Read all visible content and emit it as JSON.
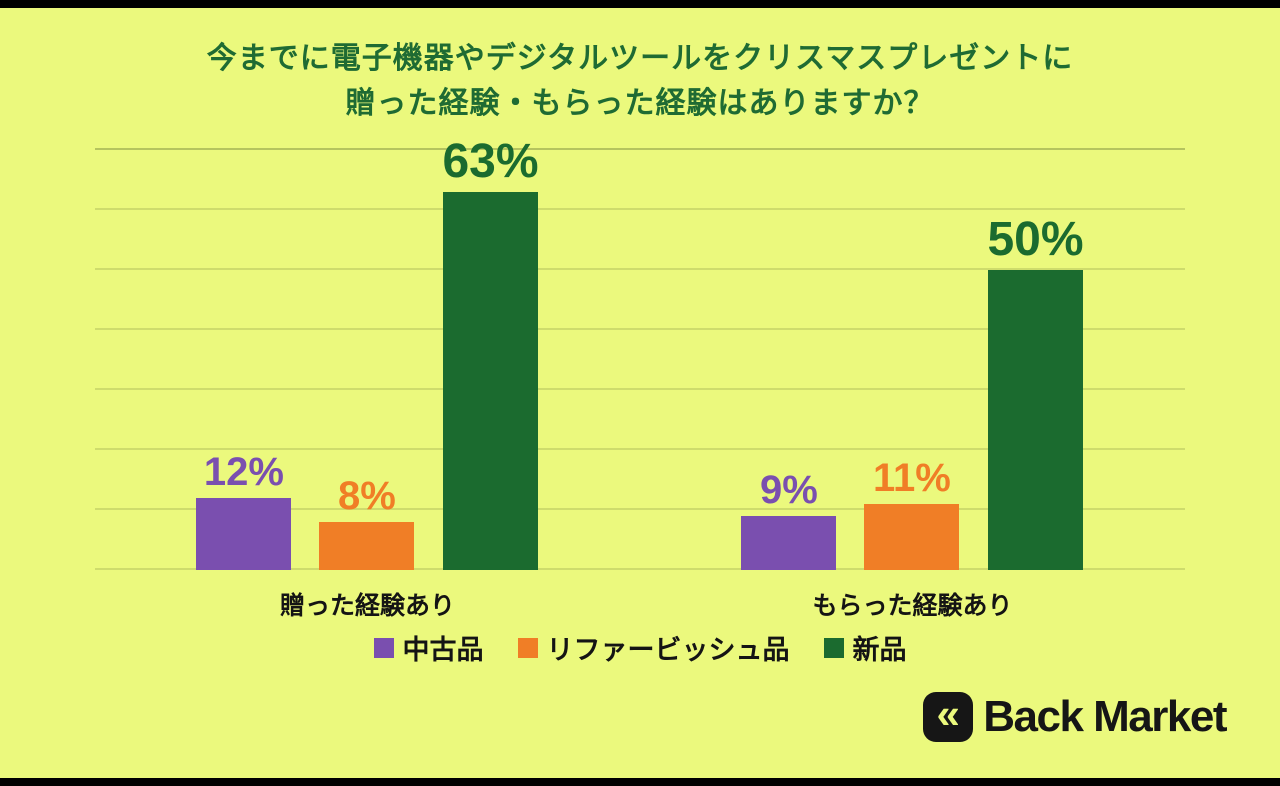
{
  "background_color": "#EBF97D",
  "text_color": "#141414",
  "title_color": "#1F6B33",
  "chart_data": {
    "type": "bar",
    "title": "今までに電子機器やデジタルツールをクリスマスプレゼントに贈った経験・もらった経験はありますか？",
    "title_lines": [
      "今までに電子機器やデジタルツールをクリスマスプレゼントに",
      "贈った経験・もらった経験はありますか？"
    ],
    "categories": [
      "贈った経験あり",
      "もらった経験あり"
    ],
    "series": [
      {
        "name": "中古品",
        "color": "#7A4FAF",
        "values": [
          12,
          9
        ]
      },
      {
        "name": "リファービッシュ品",
        "color": "#F07E26",
        "values": [
          8,
          11
        ]
      },
      {
        "name": "新品",
        "color": "#1B6B2F",
        "values": [
          63,
          50
        ]
      }
    ],
    "value_suffix": "%",
    "ylim": [
      0,
      70
    ],
    "gridline_step": 10,
    "grid": true,
    "legend_position": "bottom"
  },
  "branding": {
    "logo_text": "Back Market",
    "logo_icon": "«"
  }
}
